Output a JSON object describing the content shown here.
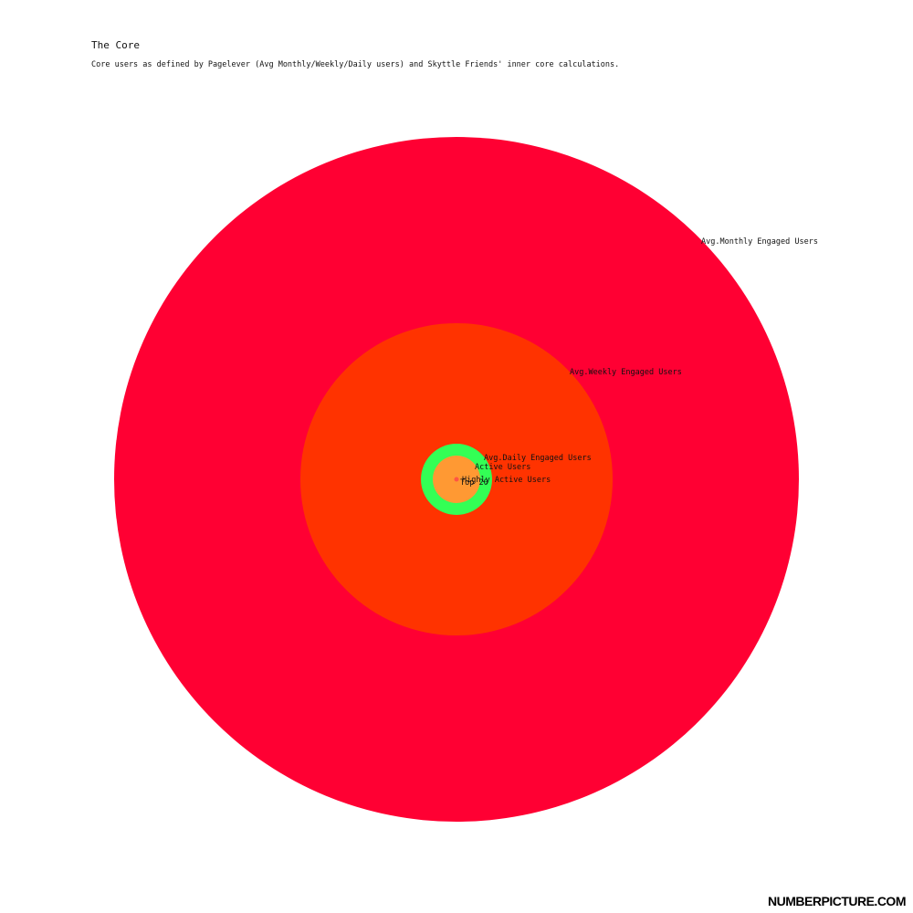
{
  "chart_data": {
    "type": "nested-circles",
    "title": "The Core",
    "subtitle": "Core users as defined by Pagelever (Avg Monthly/Weekly/Daily users) and Skyttle Friends' inner core calculations.",
    "series": [
      {
        "name": "Avg.Monthly Engaged Users",
        "value": 1000,
        "color": "#ff0033"
      },
      {
        "name": "Avg.Weekly Engaged Users",
        "value": 208,
        "color": "#ff3300"
      },
      {
        "name": "Avg.Daily Engaged Users",
        "value": 10.8,
        "color": "#33ff55"
      },
      {
        "name": "Active Users",
        "value": 4.8,
        "color": "#ff9933"
      },
      {
        "name": "Highly Active Users",
        "value": 0.048,
        "color": "#ff9933"
      },
      {
        "name": "Top 20",
        "value": 0.02,
        "color": "#ff5544"
      }
    ]
  },
  "brand": "NUMBERPICTURE.COM"
}
